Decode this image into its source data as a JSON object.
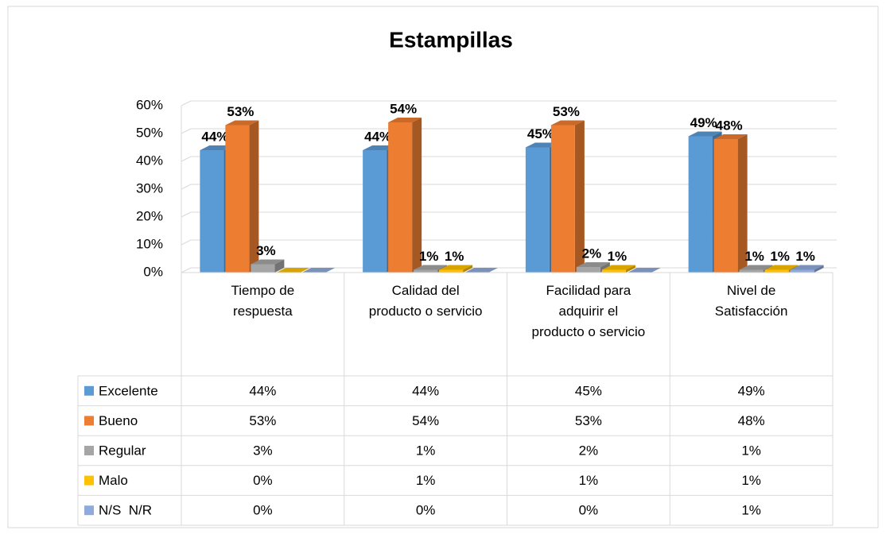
{
  "chart_data": {
    "type": "bar3d",
    "title": "Estampillas",
    "categories": [
      "Tiempo de respuesta",
      "Calidad del producto o servicio",
      "Facilidad para adquirir el producto o servicio",
      "Nivel de Satisfacción"
    ],
    "series": [
      {
        "name": "Excelente",
        "color": "#5b9bd5",
        "values": [
          44,
          44,
          45,
          49
        ],
        "value_labels": [
          "44%",
          "44%",
          "45%",
          "49%"
        ]
      },
      {
        "name": "Bueno",
        "color": "#ed7d31",
        "values": [
          53,
          54,
          53,
          48
        ],
        "value_labels": [
          "53%",
          "54%",
          "53%",
          "48%"
        ]
      },
      {
        "name": "Regular",
        "color": "#a5a5a5",
        "values": [
          3,
          1,
          2,
          1
        ],
        "value_labels": [
          "3%",
          "1%",
          "2%",
          "1%"
        ]
      },
      {
        "name": "Malo",
        "color": "#ffc000",
        "values": [
          0,
          1,
          1,
          1
        ],
        "value_labels": [
          "0%",
          "1%",
          "1%",
          "1%"
        ]
      },
      {
        "name": "N/S  N/R",
        "color": "#8faadc",
        "values": [
          0,
          0,
          0,
          1
        ],
        "value_labels": [
          "0%",
          "0%",
          "0%",
          "1%"
        ]
      }
    ],
    "ylim": [
      0,
      60
    ],
    "yticks": [
      {
        "value": 0,
        "label": "0%"
      },
      {
        "value": 10,
        "label": "10%"
      },
      {
        "value": 20,
        "label": "20%"
      },
      {
        "value": 30,
        "label": "30%"
      },
      {
        "value": 40,
        "label": "40%"
      },
      {
        "value": 50,
        "label": "50%"
      },
      {
        "value": 60,
        "label": "60%"
      }
    ],
    "grid": true,
    "data_table": true
  }
}
